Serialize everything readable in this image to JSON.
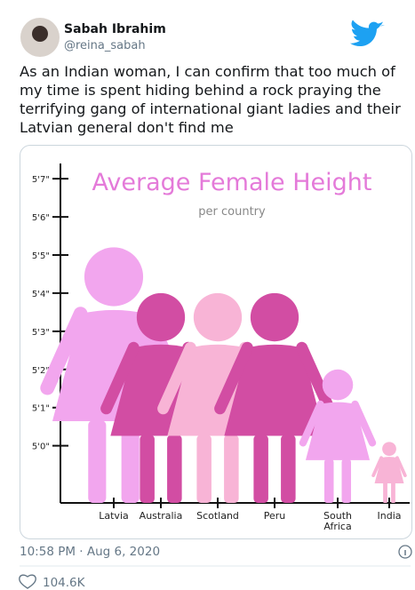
{
  "tweet": {
    "name": "Sabah Ibrahim",
    "handle": "@reina_sabah",
    "text": "As an Indian woman, I can confirm that too much of my time is spent hiding behind a rock praying the terrifying gang of international giant ladies and their Latvian general don't find me",
    "timestamp": "10:58 PM · Aug 6, 2020",
    "likes": "104.6K"
  },
  "chart_data": {
    "type": "pictograph",
    "title": "Average Female Height",
    "subtitle": "per country",
    "categories": [
      "Latvia",
      "Australia",
      "Scotland",
      "Peru",
      "South Africa",
      "India"
    ],
    "values": [
      65.2,
      64,
      64,
      64,
      62,
      60.1
    ],
    "colors": [
      "#f2a6ee",
      "#d24da3",
      "#f8b4d6",
      "#d24da3",
      "#f2a6ee",
      "#f8b4d6"
    ],
    "ylim": [
      58.5,
      67.4
    ],
    "yticks": [
      {
        "value": 60,
        "label": "5'0\""
      },
      {
        "value": 61,
        "label": "5'1\""
      },
      {
        "value": 62,
        "label": "5'2\""
      },
      {
        "value": 63,
        "label": "5'3\""
      },
      {
        "value": 64,
        "label": "5'4\""
      },
      {
        "value": 65,
        "label": "5'5\""
      },
      {
        "value": 66,
        "label": "5'6\""
      },
      {
        "value": 67,
        "label": "5'7\""
      }
    ]
  }
}
